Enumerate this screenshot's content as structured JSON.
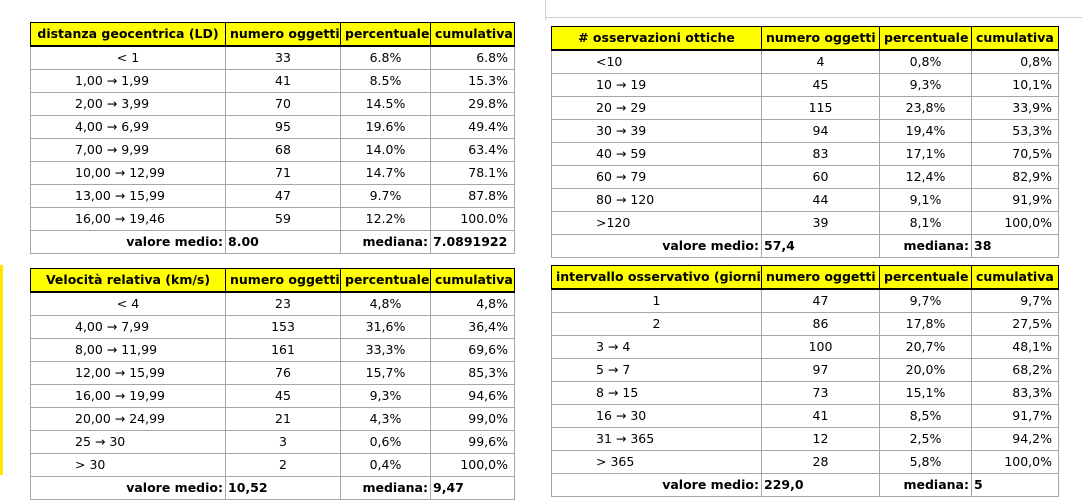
{
  "tables": [
    {
      "headers": [
        "distanza geocentrica (LD)",
        "numero oggetti",
        "percentuale",
        "cumulativa"
      ],
      "rows": [
        [
          "< 1",
          "33",
          "6.8%",
          "6.8%"
        ],
        [
          "1,00 → 1,99",
          "41",
          "8.5%",
          "15.3%"
        ],
        [
          "2,00 → 3,99",
          "70",
          "14.5%",
          "29.8%"
        ],
        [
          "4,00 → 6,99",
          "95",
          "19.6%",
          "49.4%"
        ],
        [
          "7,00 → 9,99",
          "68",
          "14.0%",
          "63.4%"
        ],
        [
          "10,00 → 12,99",
          "71",
          "14.7%",
          "78.1%"
        ],
        [
          "13,00 → 15,99",
          "47",
          "9.7%",
          "87.8%"
        ],
        [
          "16,00 →  19,46",
          "59",
          "12.2%",
          "100.0%"
        ]
      ],
      "footer": {
        "mean_label": "valore medio:",
        "mean": "8.00",
        "median_label": "mediana:",
        "median": "7.0891922"
      }
    },
    {
      "headers": [
        "# osservazioni ottiche",
        "numero oggetti",
        "percentuale",
        "cumulativa"
      ],
      "rows": [
        [
          "<10",
          "4",
          "0,8%",
          "0,8%"
        ],
        [
          "10 → 19",
          "45",
          "9,3%",
          "10,1%"
        ],
        [
          "20 → 29",
          "115",
          "23,8%",
          "33,9%"
        ],
        [
          "30 → 39",
          "94",
          "19,4%",
          "53,3%"
        ],
        [
          "40 → 59",
          "83",
          "17,1%",
          "70,5%"
        ],
        [
          "60 → 79",
          "60",
          "12,4%",
          "82,9%"
        ],
        [
          "80 → 120",
          "44",
          "9,1%",
          "91,9%"
        ],
        [
          ">120",
          "39",
          "8,1%",
          "100,0%"
        ]
      ],
      "footer": {
        "mean_label": "valore medio:",
        "mean": "57,4",
        "median_label": "mediana:",
        "median": "38"
      }
    },
    {
      "headers": [
        "Velocità relativa (km/s)",
        "numero oggetti",
        "percentuale",
        "cumulativa"
      ],
      "rows": [
        [
          "< 4",
          "23",
          "4,8%",
          "4,8%"
        ],
        [
          "4,00 → 7,99",
          "153",
          "31,6%",
          "36,4%"
        ],
        [
          "8,00 → 11,99",
          "161",
          "33,3%",
          "69,6%"
        ],
        [
          "12,00 → 15,99",
          "76",
          "15,7%",
          "85,3%"
        ],
        [
          "16,00 → 19,99",
          "45",
          "9,3%",
          "94,6%"
        ],
        [
          "20,00 → 24,99",
          "21",
          "4,3%",
          "99,0%"
        ],
        [
          "25 → 30",
          "3",
          "0,6%",
          "99,6%"
        ],
        [
          "> 30",
          "2",
          "0,4%",
          "100,0%"
        ]
      ],
      "footer": {
        "mean_label": "valore medio:",
        "mean": "10,52",
        "median_label": "mediana:",
        "median": "9,47"
      }
    },
    {
      "headers": [
        "intervallo osservativo (giorni)",
        "numero oggetti",
        "percentuale",
        "cumulativa"
      ],
      "rows": [
        [
          "1",
          "47",
          "9,7%",
          "9,7%"
        ],
        [
          "2",
          "86",
          "17,8%",
          "27,5%"
        ],
        [
          "3 → 4",
          "100",
          "20,7%",
          "48,1%"
        ],
        [
          "5 → 7",
          "97",
          "20,0%",
          "68,2%"
        ],
        [
          "8 → 15",
          "73",
          "15,1%",
          "83,3%"
        ],
        [
          "16 → 30",
          "41",
          "8,5%",
          "91,7%"
        ],
        [
          "31 → 365",
          "12",
          "2,5%",
          "94,2%"
        ],
        [
          "> 365",
          "28",
          "5,8%",
          "100,0%"
        ]
      ],
      "footer": {
        "mean_label": "valore medio:",
        "mean": "229,0",
        "median_label": "mediana:",
        "median": "5"
      }
    }
  ],
  "colors": {
    "header_bg": "#ffff00",
    "grid": "#a6a6a6",
    "border": "#000000"
  }
}
